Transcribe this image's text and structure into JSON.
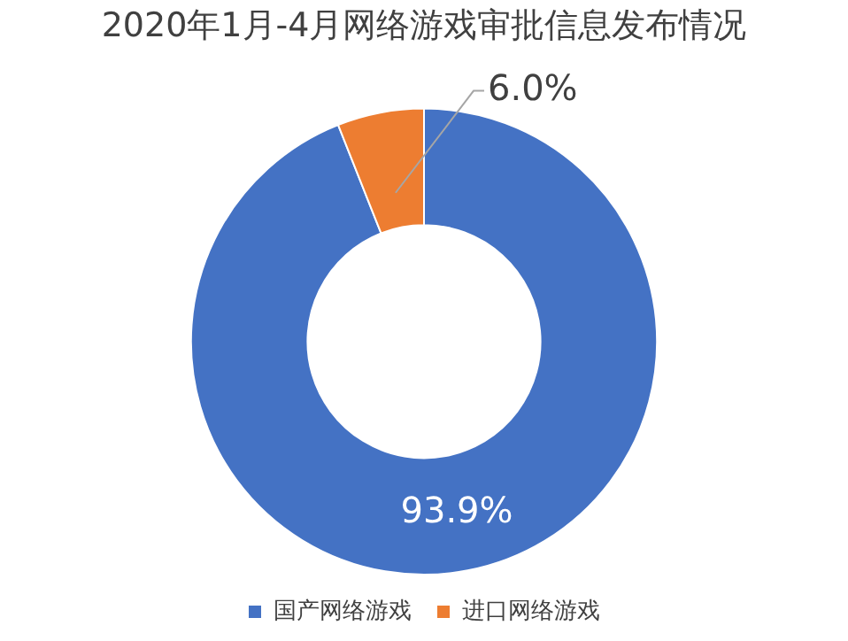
{
  "chart_data": {
    "type": "donut",
    "title": "2020年1月-4月网络游戏审批信息发布情况",
    "categories": [
      "国产网络游戏",
      "进口网络游戏"
    ],
    "values": [
      93.9,
      6.0
    ],
    "value_labels": [
      "93.9%",
      "6.0%"
    ],
    "colors": [
      "#4472c4",
      "#ed7d31"
    ],
    "legend": "bottom"
  }
}
